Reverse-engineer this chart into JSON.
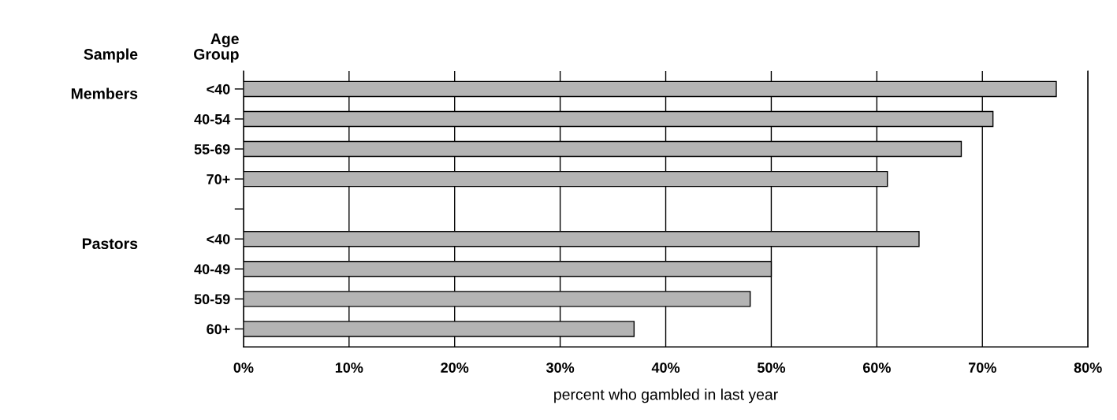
{
  "chart_data": {
    "type": "bar",
    "orientation": "horizontal",
    "categories": [
      "<40",
      "40-54",
      "55-69",
      "70+",
      null,
      "<40",
      "40-49",
      "50-59",
      "60+"
    ],
    "values": [
      77,
      71,
      68,
      61,
      null,
      64,
      50,
      48,
      37
    ],
    "color": "#b4b4b4",
    "xlabel": "percent who gambled in last year",
    "ylabel": "Age\nGroup",
    "annotations": [
      "Sample",
      "Members",
      "Pastors"
    ],
    "xlim": [
      0,
      80
    ],
    "xticks": [
      {
        "value": 0,
        "label": "0%"
      },
      {
        "value": 10,
        "label": "10%"
      },
      {
        "value": 20,
        "label": "20%"
      },
      {
        "value": 30,
        "label": "30%"
      },
      {
        "value": 40,
        "label": "40%"
      },
      {
        "value": 50,
        "label": "50%"
      },
      {
        "value": 60,
        "label": "60%"
      },
      {
        "value": 70,
        "label": "70%"
      },
      {
        "value": 80,
        "label": "80%"
      }
    ],
    "grid": "x",
    "legend": false
  }
}
